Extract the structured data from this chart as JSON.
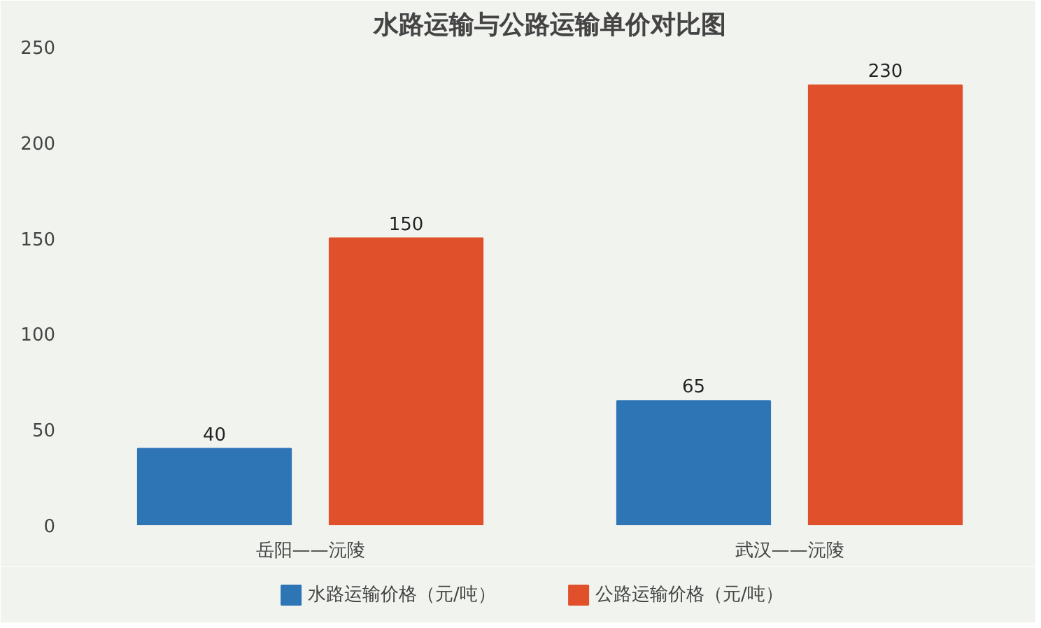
{
  "chart_data": {
    "type": "bar",
    "title": "水路运输与公路运输单价对比图",
    "categories": [
      "岳阳——沅陵",
      "武汉——沅陵"
    ],
    "series": [
      {
        "name": "水路运输价格（元/吨）",
        "color": "#2e75b6",
        "values": [
          40,
          65
        ]
      },
      {
        "name": "公路运输价格（元/吨）",
        "color": "#e0502a",
        "values": [
          150,
          230
        ]
      }
    ],
    "ylim": [
      0,
      250
    ],
    "yticks": [
      0,
      50,
      100,
      150,
      200,
      250
    ],
    "data_labels": true,
    "legend": "bottom",
    "grid": false
  }
}
